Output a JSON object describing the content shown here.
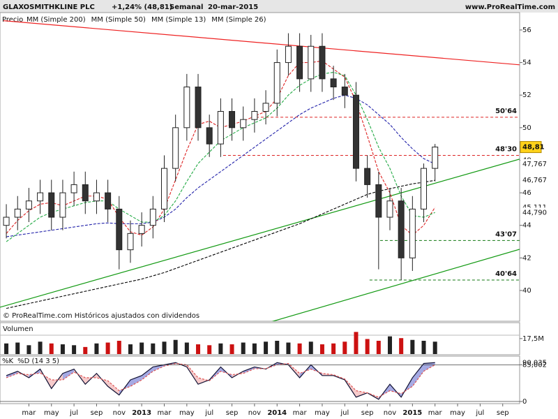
{
  "chart_data": [
    {
      "type": "candlestick",
      "title": "GLAXOSMITHKLINE PLC",
      "subtitle": "+1,24% (48,81)",
      "period": "Semanal",
      "date": "20-mar-2015",
      "source": "www.ProRealTime.com",
      "note": "© ProRealTime.com Históricos ajustados con dividendos",
      "price_label": "Precio",
      "last_label": "48,81",
      "x": [
        0,
        1,
        2,
        3,
        4,
        5,
        6,
        7,
        8,
        9,
        10,
        11,
        12,
        13,
        14,
        15,
        16,
        17,
        18,
        19,
        20,
        21,
        22,
        23,
        24,
        25,
        26,
        27,
        28,
        29,
        30,
        31,
        32,
        33,
        34,
        35,
        36,
        37,
        38
      ],
      "open": [
        44,
        44.5,
        45,
        45.5,
        46,
        44.5,
        46,
        46.5,
        45.5,
        46,
        45,
        42.5,
        43.5,
        44,
        45,
        47.5,
        50,
        52.5,
        50,
        49,
        51,
        50,
        50.5,
        51,
        51.5,
        54,
        55,
        53,
        55,
        53,
        52.5,
        52,
        47.5,
        46.5,
        44.5,
        45.5,
        42,
        45,
        47.5
      ],
      "high": [
        45.3,
        45.8,
        46.3,
        46.8,
        46.8,
        46.8,
        47.3,
        47.3,
        46.8,
        46.8,
        45.8,
        44.3,
        44.8,
        45.8,
        48.3,
        50.8,
        53.3,
        53.3,
        50.8,
        51.8,
        51.8,
        51.3,
        51.8,
        52.3,
        54.8,
        55.8,
        55.8,
        55.7,
        55.8,
        53.8,
        53.3,
        52.8,
        48.3,
        47.3,
        46.3,
        46.3,
        45.8,
        47.8,
        49
      ],
      "low": [
        43.2,
        43.7,
        44.2,
        44.7,
        43.7,
        43.7,
        45.2,
        44.7,
        44.7,
        44.2,
        41.3,
        41.7,
        42.7,
        43.2,
        44.2,
        46.7,
        49.2,
        49.2,
        48.2,
        48.2,
        49.2,
        49.2,
        49.7,
        50.2,
        50.7,
        53.2,
        52.2,
        52.2,
        52.2,
        51.7,
        51.2,
        46.7,
        45.7,
        41.3,
        43.7,
        40.64,
        41.2,
        44.2,
        46.7
      ],
      "close": [
        44.5,
        45,
        45.5,
        46,
        44.5,
        46,
        46.5,
        45.5,
        46,
        45,
        42.5,
        43.5,
        44,
        45,
        47.5,
        50,
        52.5,
        50,
        49,
        51,
        50,
        50.5,
        51,
        51.5,
        54,
        55,
        53,
        55,
        53,
        52.5,
        52,
        47.5,
        46.5,
        44.5,
        45.5,
        42,
        45,
        47.5,
        48.81
      ],
      "series": [
        {
          "name": "MM (Simple 200)",
          "color": "#000000",
          "last_label": "46,767",
          "values": [
            38.9,
            39.05,
            39.2,
            39.35,
            39.5,
            39.65,
            39.8,
            39.95,
            40.1,
            40.25,
            40.4,
            40.55,
            40.7,
            40.9,
            41.1,
            41.35,
            41.6,
            41.85,
            42.1,
            42.35,
            42.6,
            42.85,
            43.1,
            43.35,
            43.6,
            43.85,
            44.1,
            44.4,
            44.7,
            45,
            45.3,
            45.6,
            45.9,
            46.1,
            46.25,
            46.4,
            46.55,
            46.65,
            46.767
          ]
        },
        {
          "name": "MM (Simple 50)",
          "color": "#2222aa",
          "last_label": "47,767",
          "values": [
            43.3,
            43.4,
            43.5,
            43.6,
            43.7,
            43.8,
            43.9,
            44,
            44.1,
            44.15,
            44.1,
            44.1,
            44.1,
            44.2,
            44.5,
            45,
            45.7,
            46.3,
            46.8,
            47.3,
            47.8,
            48.3,
            48.8,
            49.3,
            49.8,
            50.3,
            50.8,
            51.2,
            51.5,
            51.8,
            52,
            51.8,
            51.4,
            50.8,
            50.2,
            49.4,
            48.7,
            48.1,
            47.767
          ]
        },
        {
          "name": "MM (Simple 13)",
          "color": "#dd2222",
          "last_label": "45,111",
          "values": [
            43.5,
            44.3,
            44.9,
            45.3,
            45.4,
            45.2,
            45.5,
            45.8,
            45.8,
            45.6,
            44.5,
            43.6,
            43.4,
            43.9,
            45,
            46.8,
            48.6,
            50.2,
            50.4,
            50,
            50.2,
            50.4,
            50.7,
            51,
            51.8,
            53.2,
            54,
            54,
            54.1,
            53.6,
            53.1,
            51.6,
            49.5,
            47.3,
            46,
            44,
            43.4,
            44,
            45.111
          ]
        },
        {
          "name": "MM (Simple 26)",
          "color": "#22aa44",
          "last_label": "44,790",
          "values": [
            43,
            43.5,
            44,
            44.5,
            44.8,
            45,
            45.2,
            45.4,
            45.5,
            45.5,
            45,
            44.6,
            44.2,
            44.2,
            44.6,
            45.5,
            46.7,
            47.8,
            48.5,
            49.2,
            49.6,
            50,
            50.3,
            50.6,
            51.2,
            52,
            52.6,
            53,
            53.3,
            53.4,
            53.2,
            52,
            50.5,
            48.8,
            47.5,
            45.8,
            44.6,
            44.5,
            44.79
          ]
        }
      ],
      "levels": [
        {
          "value": 50.64,
          "label": "50'64",
          "from": 21.7,
          "color": "#dd2222"
        },
        {
          "value": 48.3,
          "label": "48'30",
          "from": 19.22,
          "color": "#dd2222"
        },
        {
          "value": 43.07,
          "label": "43'07",
          "from": 33.13,
          "color": "#117711"
        },
        {
          "value": 40.64,
          "label": "40'64",
          "from": 32.2,
          "color": "#117711"
        }
      ],
      "trendlines": [
        {
          "x": [
            -0.25,
            45.5
          ],
          "y": [
            56.57,
            53.86
          ],
          "color": "#ee2222"
        },
        {
          "x": [
            -0.56,
            45.5
          ],
          "y": [
            38.97,
            48.07
          ],
          "color": "#119911"
        },
        {
          "x": [
            23.24,
            45.5
          ],
          "y": [
            38.03,
            42.53
          ],
          "color": "#119911"
        }
      ],
      "xlim": [
        -0.56,
        45.5
      ],
      "ylim": [
        38.84,
        57.07
      ],
      "yticks": [
        40,
        42,
        44,
        46,
        48,
        50,
        52,
        54,
        56
      ]
    },
    {
      "type": "volume",
      "name": "Volumen",
      "x": [
        0,
        1,
        2,
        3,
        4,
        5,
        6,
        7,
        8,
        9,
        10,
        11,
        12,
        13,
        14,
        15,
        16,
        17,
        18,
        19,
        20,
        21,
        22,
        23,
        24,
        25,
        26,
        27,
        28,
        29,
        30,
        31,
        32,
        33,
        34,
        35,
        36,
        37,
        38
      ],
      "values": [
        12,
        13,
        10,
        14,
        12,
        11,
        10,
        8,
        12,
        13,
        15,
        11,
        13,
        12,
        14,
        16,
        13,
        11,
        10,
        12,
        11,
        13,
        12,
        14,
        15,
        13,
        12,
        14,
        11,
        12,
        14,
        25,
        17,
        15,
        20,
        18,
        16,
        15,
        14
      ],
      "up_color": "#222222",
      "down_color": "#cc1111",
      "xlim": [
        -0.56,
        45.5
      ],
      "ylim": [
        0,
        30
      ],
      "yticks": [
        {
          "value": 17.5,
          "label": "17,5M"
        }
      ]
    },
    {
      "type": "stochastic",
      "x": [
        0,
        1,
        2,
        3,
        4,
        5,
        6,
        7,
        8,
        9,
        10,
        11,
        12,
        13,
        14,
        15,
        16,
        17,
        18,
        19,
        20,
        21,
        22,
        23,
        24,
        25,
        26,
        27,
        28,
        29,
        30,
        31,
        32,
        33,
        34,
        35,
        36,
        37,
        38
      ],
      "series": [
        {
          "name": "%K",
          "color": "#111133",
          "last_label": "90,035",
          "values": [
            60,
            70,
            55,
            75,
            30,
            65,
            75,
            40,
            65,
            35,
            15,
            50,
            60,
            80,
            85,
            90,
            80,
            40,
            50,
            80,
            55,
            70,
            80,
            75,
            90,
            85,
            55,
            85,
            60,
            60,
            50,
            10,
            20,
            5,
            40,
            10,
            55,
            88,
            90.035
          ]
        },
        {
          "name": "%D (14 3 5)",
          "color": "#dd5555",
          "values": [
            55,
            65,
            62,
            66,
            50,
            50,
            68,
            55,
            55,
            48,
            25,
            35,
            50,
            70,
            82,
            88,
            85,
            55,
            48,
            70,
            62,
            65,
            76,
            76,
            85,
            88,
            65,
            75,
            65,
            62,
            52,
            25,
            20,
            10,
            25,
            18,
            35,
            70,
            85
          ]
        }
      ],
      "xlim": [
        -0.56,
        45.5
      ],
      "ylim": [
        -5,
        105
      ],
      "yticks": [
        {
          "value": 85.002,
          "label": "85,002"
        },
        0
      ],
      "xticks": [
        {
          "value": 2,
          "label": "mar"
        },
        {
          "value": 4,
          "label": "may"
        },
        {
          "value": 6,
          "label": "jul"
        },
        {
          "value": 8,
          "label": "sep"
        },
        {
          "value": 10,
          "label": "nov"
        },
        {
          "value": 12,
          "label": "2013"
        },
        {
          "value": 14,
          "label": "mar"
        },
        {
          "value": 16,
          "label": "may"
        },
        {
          "value": 18,
          "label": "jul"
        },
        {
          "value": 20,
          "label": "sep"
        },
        {
          "value": 22,
          "label": "nov"
        },
        {
          "value": 24,
          "label": "2014"
        },
        {
          "value": 26,
          "label": "mar"
        },
        {
          "value": 28,
          "label": "may"
        },
        {
          "value": 30,
          "label": "jul"
        },
        {
          "value": 32,
          "label": "sep"
        },
        {
          "value": 34,
          "label": "nov"
        },
        {
          "value": 36,
          "label": "2015"
        },
        {
          "value": 38,
          "label": "mar"
        },
        {
          "value": 40,
          "label": "may"
        },
        {
          "value": 42,
          "label": "jul"
        },
        {
          "value": 44,
          "label": "sep"
        }
      ]
    }
  ]
}
